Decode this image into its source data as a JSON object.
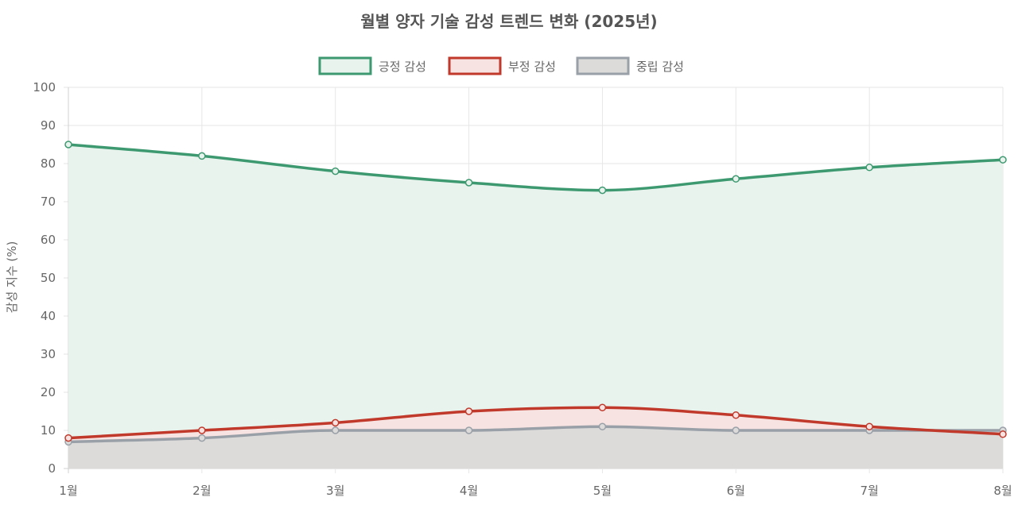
{
  "chart_data": {
    "type": "line",
    "title": "월별 양자 기술 감성 트렌드 변화 (2025년)",
    "ylabel": "감성 지수 (%)",
    "xlabel": "",
    "categories": [
      "1월",
      "2월",
      "3월",
      "4월",
      "5월",
      "6월",
      "7월",
      "8월"
    ],
    "ylim": [
      0,
      100
    ],
    "yticks": [
      0,
      10,
      20,
      30,
      40,
      50,
      60,
      70,
      80,
      90,
      100
    ],
    "grid": true,
    "legend_position": "top-center",
    "series": [
      {
        "name": "긍정 감성",
        "values": [
          85,
          82,
          78,
          75,
          73,
          76,
          79,
          81
        ],
        "color": "#3d9970",
        "fill": "#e8f3ee"
      },
      {
        "name": "부정 감성",
        "values": [
          8,
          10,
          12,
          15,
          16,
          14,
          11,
          9
        ],
        "color": "#c0392b",
        "fill": "#f7e3e1"
      },
      {
        "name": "중립 감성",
        "values": [
          7,
          8,
          10,
          10,
          11,
          10,
          10,
          10
        ],
        "color": "#9aa0a8",
        "fill": "#dcdbda"
      }
    ]
  }
}
